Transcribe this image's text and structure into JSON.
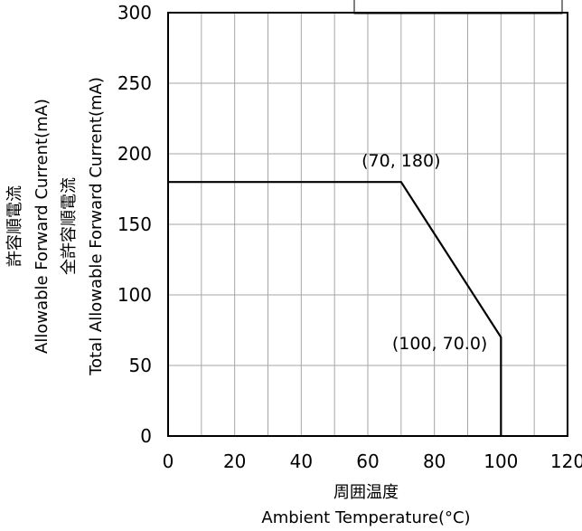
{
  "chart_data": {
    "type": "line",
    "x": [
      0,
      70,
      100,
      100
    ],
    "series": [
      {
        "values": [
          180,
          180,
          70,
          0
        ]
      }
    ],
    "xlim": [
      0,
      120
    ],
    "ylim": [
      0,
      300
    ],
    "x_ticks": [
      "0",
      "20",
      "40",
      "60",
      "80",
      "100",
      "120"
    ],
    "y_ticks": [
      "0",
      "50",
      "100",
      "150",
      "200",
      "250",
      "300"
    ],
    "x_grid_step": 10,
    "y_grid_step": 50,
    "grid": true,
    "xlabel_lines": [
      "周囲温度",
      "Ambient Temperature(°C)"
    ],
    "ylabel_lines": [
      "許容順電流",
      "Allowable Forward Current(mA)",
      "全許容順電流",
      "Total Allowable Forward Current(mA)"
    ],
    "annotations": [
      {
        "text": "(70, 180)",
        "x": 70,
        "y": 180
      },
      {
        "text": "(100, 70.0)",
        "x": 100,
        "y": 70
      }
    ],
    "legend": "top-right",
    "line_color": "#000000",
    "grid_color": "#a6a6a6"
  }
}
